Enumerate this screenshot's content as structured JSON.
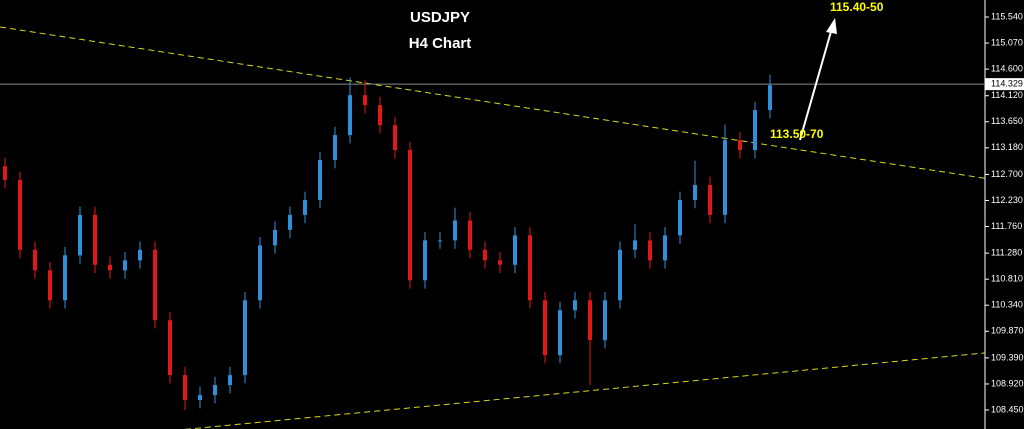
{
  "chart_data": {
    "type": "candlestick",
    "title": "USDJPY",
    "subtitle": "H4 Chart",
    "up_color": "#2f8fd8",
    "down_color": "#e01818",
    "trendline_color": "#d8d820",
    "open": [
      112.85,
      112.6,
      111.34,
      110.97,
      110.43,
      111.24,
      111.97,
      111.07,
      110.97,
      111.15,
      111.34,
      110.07,
      109.08,
      108.63,
      108.72,
      108.9,
      109.08,
      110.43,
      111.42,
      111.7,
      111.97,
      112.24,
      112.96,
      113.41,
      114.13,
      113.95,
      113.59,
      113.14,
      110.79,
      111.51,
      111.51,
      111.87,
      111.34,
      111.15,
      111.07,
      111.6,
      110.43,
      109.44,
      110.25,
      110.43,
      109.71,
      110.43,
      111.34,
      111.51,
      111.15,
      111.6,
      112.24,
      112.51,
      111.97,
      113.32,
      113.14,
      113.86
    ],
    "high": [
      113.0,
      112.75,
      111.49,
      111.12,
      111.39,
      112.12,
      112.12,
      111.22,
      111.3,
      111.49,
      111.49,
      110.22,
      109.23,
      108.87,
      109.05,
      109.23,
      110.58,
      111.57,
      111.85,
      112.12,
      112.39,
      113.11,
      113.56,
      114.45,
      114.4,
      114.1,
      113.74,
      113.29,
      111.66,
      111.66,
      112.1,
      112.02,
      111.49,
      111.3,
      111.75,
      111.75,
      110.58,
      110.4,
      110.58,
      110.58,
      110.58,
      111.49,
      111.8,
      111.66,
      111.75,
      112.39,
      112.95,
      112.66,
      113.6,
      113.47,
      114.01,
      114.5
    ],
    "low": [
      112.45,
      111.19,
      110.82,
      110.28,
      110.28,
      111.09,
      110.92,
      110.82,
      110.82,
      111.0,
      109.92,
      108.93,
      108.45,
      108.48,
      108.57,
      108.75,
      108.93,
      110.28,
      111.27,
      111.55,
      111.82,
      112.09,
      112.81,
      113.26,
      113.8,
      113.44,
      112.99,
      110.64,
      110.64,
      111.36,
      111.36,
      111.19,
      111.0,
      110.92,
      110.92,
      110.28,
      109.29,
      109.29,
      110.1,
      108.9,
      109.56,
      110.28,
      111.19,
      111.0,
      111.0,
      111.45,
      112.09,
      111.82,
      111.82,
      112.99,
      112.99,
      113.71
    ],
    "close": [
      112.6,
      111.34,
      110.97,
      110.43,
      111.24,
      111.97,
      111.07,
      110.97,
      111.15,
      111.34,
      110.07,
      109.08,
      108.63,
      108.72,
      108.9,
      109.08,
      110.43,
      111.42,
      111.7,
      111.97,
      112.24,
      112.96,
      113.41,
      114.13,
      113.95,
      113.59,
      113.14,
      110.79,
      111.51,
      111.51,
      111.87,
      111.34,
      111.15,
      111.07,
      111.6,
      110.43,
      109.44,
      110.25,
      110.43,
      109.71,
      110.43,
      111.34,
      111.51,
      111.15,
      111.6,
      112.24,
      112.51,
      111.97,
      113.32,
      113.14,
      113.86,
      114.31
    ],
    "current_price": 114.329,
    "trendlines": [
      {
        "x": [
          -0.33,
          65.33
        ],
        "y": [
          115.36,
          112.63
        ]
      },
      {
        "x": [
          12,
          65.33
        ],
        "y": [
          108.1,
          109.48
        ]
      }
    ],
    "annotations": [
      "115.40-50",
      "113.50-70"
    ],
    "ylim": [
      108.107,
      115.847
    ],
    "yticks": [
      {
        "value": 115.54,
        "label": "115.540"
      },
      {
        "value": 115.07,
        "label": "115.070"
      },
      {
        "value": 114.6,
        "label": "114.600"
      },
      {
        "value": 114.12,
        "label": "114.120"
      },
      {
        "value": 113.65,
        "label": "113.650"
      },
      {
        "value": 113.18,
        "label": "113.180"
      },
      {
        "value": 112.7,
        "label": "112.700"
      },
      {
        "value": 112.23,
        "label": "112.230"
      },
      {
        "value": 111.76,
        "label": "111.760"
      },
      {
        "value": 111.28,
        "label": "111.280"
      },
      {
        "value": 110.81,
        "label": "110.810"
      },
      {
        "value": 110.34,
        "label": "110.340"
      },
      {
        "value": 109.87,
        "label": "109.870"
      },
      {
        "value": 109.39,
        "label": "109.390"
      },
      {
        "value": 108.92,
        "label": "108.920"
      },
      {
        "value": 108.45,
        "label": "108.450"
      }
    ]
  }
}
